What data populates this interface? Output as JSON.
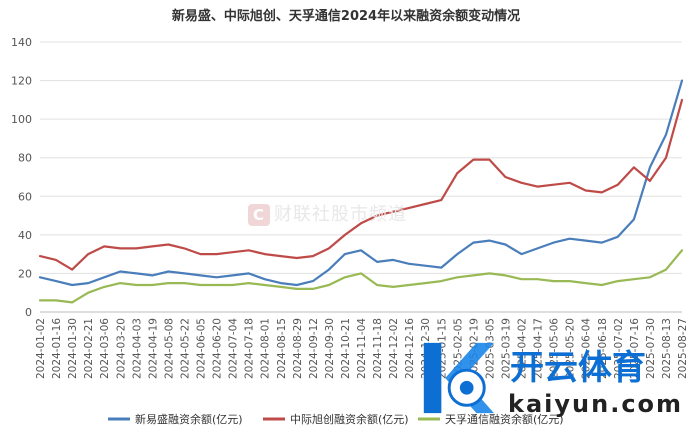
{
  "chart_data": {
    "type": "line",
    "title": "新易盛、中际旭创、天孚通信2024年以来融资余额变动情况",
    "xlabel": "",
    "ylabel": "",
    "ylim": [
      0,
      140
    ],
    "yticks": [
      0,
      20,
      40,
      60,
      80,
      100,
      120,
      140
    ],
    "grid": true,
    "legend_position": "bottom",
    "categories": [
      "2024-01-02",
      "2024-01-16",
      "2024-01-30",
      "2024-02-21",
      "2024-03-06",
      "2024-03-20",
      "2024-04-03",
      "2024-04-19",
      "2024-05-08",
      "2024-05-22",
      "2024-06-05",
      "2024-06-20",
      "2024-07-04",
      "2024-07-18",
      "2024-08-01",
      "2024-08-15",
      "2024-08-29",
      "2024-09-12",
      "2024-09-30",
      "2024-10-21",
      "2024-11-04",
      "2024-11-18",
      "2024-12-02",
      "2024-12-16",
      "2024-12-30",
      "2025-01-15",
      "2025-02-05",
      "2025-02-19",
      "2025-03-05",
      "2025-03-19",
      "2025-04-02",
      "2025-04-17",
      "2025-05-06",
      "2025-05-20",
      "2025-06-04",
      "2025-06-18",
      "2025-07-02",
      "2025-07-16",
      "2025-07-30",
      "2025-08-13",
      "2025-08-27"
    ],
    "series": [
      {
        "name": "新易盛融资余额(亿元)",
        "color": "#4a7ebb",
        "values": [
          18,
          16,
          14,
          15,
          18,
          21,
          20,
          19,
          21,
          20,
          19,
          18,
          19,
          20,
          17,
          15,
          14,
          16,
          22,
          30,
          32,
          26,
          27,
          25,
          24,
          23,
          30,
          36,
          37,
          35,
          30,
          33,
          36,
          38,
          37,
          36,
          39,
          48,
          75,
          92,
          120
        ]
      },
      {
        "name": "中际旭创融资余额(亿元)",
        "color": "#be4b48",
        "values": [
          29,
          27,
          22,
          30,
          34,
          33,
          33,
          34,
          35,
          33,
          30,
          30,
          31,
          32,
          30,
          29,
          28,
          29,
          33,
          40,
          46,
          50,
          52,
          54,
          56,
          58,
          72,
          79,
          79,
          70,
          67,
          65,
          66,
          67,
          63,
          62,
          66,
          75,
          68,
          80,
          110
        ]
      },
      {
        "name": "天孚通信融资余额(亿元)",
        "color": "#98b954",
        "values": [
          6,
          6,
          5,
          10,
          13,
          15,
          14,
          14,
          15,
          15,
          14,
          14,
          14,
          15,
          14,
          13,
          12,
          12,
          14,
          18,
          20,
          14,
          13,
          14,
          15,
          16,
          18,
          19,
          20,
          19,
          17,
          17,
          16,
          16,
          15,
          14,
          16,
          17,
          18,
          22,
          32
        ]
      }
    ]
  },
  "watermark": "财联社股市频道",
  "brand": {
    "name": "开云体育",
    "url": "kaiyun.com"
  }
}
